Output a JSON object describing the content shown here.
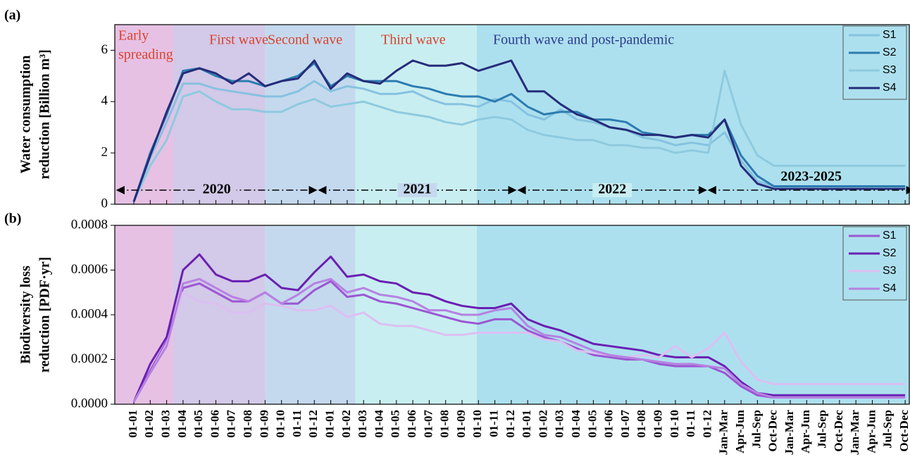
{
  "chart_data": [
    {
      "type": "line",
      "panel_label": "(a)",
      "ylabel": [
        "Water consumption",
        "reduction [Billion m³]"
      ],
      "ylim": [
        0,
        7
      ],
      "yticks": [
        0,
        2,
        4,
        6
      ],
      "phases": [
        {
          "name": [
            "Early",
            "spreading"
          ],
          "color": "#e6c1e4",
          "text_color": "#d8432c"
        },
        {
          "name": [
            "First wave"
          ],
          "color": "#d3c9e8",
          "text_color": "#d8432c"
        },
        {
          "name": [
            "Second wave"
          ],
          "color": "#c4d9ee",
          "text_color": "#d8432c"
        },
        {
          "name": [
            "Third wave"
          ],
          "color": "#c9eef1",
          "text_color": "#d8432c"
        },
        {
          "name": [
            "Fourth wave and post-pandemic"
          ],
          "color": "#ade0ee",
          "text_color": "#2a3a8f"
        }
      ],
      "periods": [
        "2020",
        "2021",
        "2022",
        "2023-2025"
      ],
      "series": [
        {
          "name": "S1",
          "color": "#86c2e0",
          "values": [
            0.1,
            1.8,
            3.2,
            4.7,
            4.7,
            4.5,
            4.4,
            4.3,
            4.2,
            4.2,
            4.4,
            4.8,
            4.4,
            4.6,
            4.5,
            4.3,
            4.3,
            4.4,
            4.1,
            3.9,
            3.9,
            3.8,
            4.1,
            4.0,
            3.5,
            3.3,
            3.7,
            3.3,
            3.2,
            3.0,
            2.9,
            2.6,
            2.5,
            2.3,
            2.4,
            2.3,
            2.8,
            1.7,
            0.9,
            0.7,
            0.7,
            0.7,
            0.7,
            0.7,
            0.7,
            0.7,
            0.7,
            0.7
          ]
        },
        {
          "name": "S2",
          "color": "#2c7cb1",
          "values": [
            0.1,
            2.0,
            3.5,
            5.2,
            5.3,
            5.0,
            4.8,
            4.8,
            4.6,
            4.8,
            5.0,
            5.5,
            4.6,
            5.0,
            4.8,
            4.8,
            4.8,
            4.6,
            4.5,
            4.3,
            4.2,
            4.2,
            4.0,
            4.3,
            3.8,
            3.5,
            3.6,
            3.6,
            3.3,
            3.3,
            3.2,
            2.8,
            2.7,
            2.6,
            2.7,
            2.7,
            3.3,
            1.9,
            1.1,
            0.7,
            0.7,
            0.7,
            0.7,
            0.7,
            0.7,
            0.7,
            0.7,
            0.7
          ]
        },
        {
          "name": "S3",
          "color": "#8ecadf",
          "values": [
            0.1,
            1.5,
            2.5,
            4.2,
            4.4,
            4.0,
            3.7,
            3.7,
            3.6,
            3.6,
            3.9,
            4.1,
            3.8,
            3.9,
            4.0,
            3.8,
            3.6,
            3.5,
            3.4,
            3.2,
            3.1,
            3.3,
            3.4,
            3.3,
            2.9,
            2.7,
            2.6,
            2.5,
            2.5,
            2.3,
            2.3,
            2.2,
            2.2,
            2.0,
            2.1,
            2.0,
            5.2,
            3.1,
            1.9,
            1.5,
            1.5,
            1.5,
            1.5,
            1.5,
            1.5,
            1.5,
            1.5,
            1.5
          ]
        },
        {
          "name": "S4",
          "color": "#262c7a",
          "values": [
            0.1,
            1.9,
            3.6,
            5.1,
            5.3,
            5.1,
            4.7,
            5.1,
            4.6,
            4.8,
            4.9,
            5.6,
            4.5,
            5.1,
            4.8,
            4.7,
            5.2,
            5.6,
            5.4,
            5.4,
            5.5,
            5.2,
            5.4,
            5.6,
            4.4,
            4.4,
            3.9,
            3.5,
            3.3,
            3.0,
            2.9,
            2.7,
            2.7,
            2.6,
            2.7,
            2.6,
            3.3,
            1.5,
            0.8,
            0.6,
            0.6,
            0.6,
            0.6,
            0.6,
            0.6,
            0.6,
            0.6,
            0.6
          ]
        }
      ]
    },
    {
      "type": "line",
      "panel_label": "(b)",
      "ylabel": [
        "Biodiversity loss",
        "reduction [PDF·yr]"
      ],
      "ylim": [
        0,
        0.0008
      ],
      "yticks": [
        {
          "value": 0,
          "label": "0.0000"
        },
        0.0002,
        0.0004,
        0.0006,
        0.0008
      ],
      "categories": [
        "01-01",
        "01-02",
        "01-03",
        "01-04",
        "01-05",
        "01-06",
        "01-07",
        "01-08",
        "01-09",
        "01-10",
        "01-11",
        "01-12",
        "01-01",
        "01-02",
        "01-03",
        "01-04",
        "01-05",
        "01-06",
        "01-07",
        "01-08",
        "01-09",
        "01-10",
        "01-11",
        "01-12",
        "01-01",
        "01-02",
        "01-03",
        "01-04",
        "01-05",
        "01-06",
        "01-07",
        "01-08",
        "01-09",
        "01-10",
        "01-11",
        "01-12",
        "Jan-Mar",
        "Apr-Jun",
        "Jul-Sep",
        "Oct-Dec",
        "Jan-Mar",
        "Apr-Jun",
        "Jul-Sep",
        "Oct-Dec",
        "Jan-Mar",
        "Apr-Jun",
        "Jul-Sep",
        "Oct-Dec"
      ],
      "series": [
        {
          "name": "S1",
          "color": "#9b57d2",
          "values": [
            1e-05,
            0.00015,
            0.00028,
            0.00052,
            0.00054,
            0.0005,
            0.00046,
            0.00046,
            0.0005,
            0.00045,
            0.00045,
            0.00051,
            0.00055,
            0.00048,
            0.00049,
            0.00046,
            0.00045,
            0.00043,
            0.00041,
            0.00039,
            0.00037,
            0.00036,
            0.00038,
            0.00038,
            0.00033,
            0.0003,
            0.00028,
            0.00025,
            0.00022,
            0.00021,
            0.0002,
            0.0002,
            0.00018,
            0.00017,
            0.00017,
            0.00017,
            0.00014,
            8e-05,
            4e-05,
            3e-05,
            3e-05,
            3e-05,
            3e-05,
            3e-05,
            3e-05,
            3e-05,
            3e-05,
            3e-05
          ]
        },
        {
          "name": "S2",
          "color": "#6a20b2",
          "values": [
            1e-05,
            0.00018,
            0.0003,
            0.0006,
            0.00067,
            0.00058,
            0.00055,
            0.00055,
            0.00058,
            0.00052,
            0.00051,
            0.00059,
            0.00066,
            0.00057,
            0.00058,
            0.00055,
            0.00054,
            0.0005,
            0.00049,
            0.00046,
            0.00044,
            0.00043,
            0.00043,
            0.00045,
            0.00038,
            0.00035,
            0.00033,
            0.0003,
            0.00027,
            0.00026,
            0.00025,
            0.00024,
            0.00022,
            0.00021,
            0.00021,
            0.00021,
            0.00017,
            0.0001,
            5e-05,
            4e-05,
            4e-05,
            4e-05,
            4e-05,
            4e-05,
            4e-05,
            4e-05,
            4e-05,
            4e-05
          ]
        },
        {
          "name": "S3",
          "color": "#dcbff2",
          "values": [
            1e-05,
            0.00014,
            0.00027,
            0.0005,
            0.00046,
            0.00045,
            0.00041,
            0.00041,
            0.00045,
            0.00044,
            0.00042,
            0.00042,
            0.00044,
            0.00039,
            0.00041,
            0.00036,
            0.00035,
            0.00035,
            0.00033,
            0.00031,
            0.00031,
            0.00032,
            0.00032,
            0.00032,
            0.00032,
            0.00029,
            0.00028,
            0.00024,
            0.00023,
            0.00022,
            0.00021,
            0.00022,
            0.00021,
            0.00026,
            0.00021,
            0.00025,
            0.00032,
            0.00019,
            0.00011,
            9e-05,
            9e-05,
            9e-05,
            9e-05,
            9e-05,
            9e-05,
            9e-05,
            9e-05,
            9e-05
          ]
        },
        {
          "name": "S4",
          "color": "#b781e2",
          "values": [
            1e-05,
            0.00014,
            0.00026,
            0.00054,
            0.00056,
            0.00052,
            0.00048,
            0.00046,
            0.0005,
            0.00045,
            0.00049,
            0.00054,
            0.00056,
            0.0005,
            0.00052,
            0.00049,
            0.00048,
            0.00046,
            0.00042,
            0.00042,
            0.0004,
            0.0004,
            0.00042,
            0.00043,
            0.00035,
            0.00031,
            0.0003,
            0.00027,
            0.00024,
            0.00022,
            0.00021,
            0.0002,
            0.00019,
            0.00018,
            0.00018,
            0.00017,
            0.00016,
            9e-05,
            5e-05,
            3e-05,
            3e-05,
            3e-05,
            3e-05,
            3e-05,
            3e-05,
            3e-05,
            3e-05,
            3e-05
          ]
        }
      ]
    }
  ]
}
